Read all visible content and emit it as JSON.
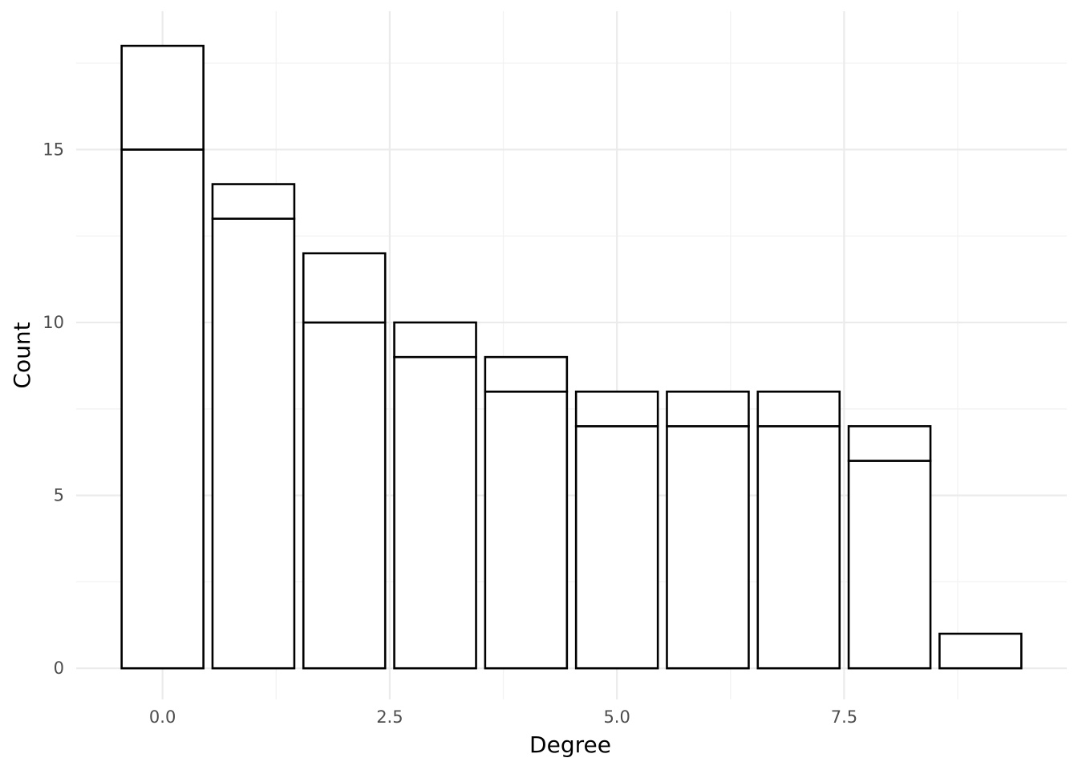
{
  "chart_data": {
    "type": "bar",
    "x": [
      0,
      1,
      2,
      3,
      4,
      5,
      6,
      7,
      8,
      9
    ],
    "series": [
      {
        "values": [
          15,
          13,
          10,
          9,
          8,
          7,
          7,
          7,
          6,
          1
        ]
      },
      {
        "values": [
          3,
          1,
          2,
          1,
          1,
          1,
          1,
          1,
          1,
          0
        ]
      }
    ],
    "stacked": true,
    "xlabel": "Degree",
    "ylabel": "Count",
    "xlim": [
      -0.95,
      9.95
    ],
    "ylim": [
      -0.9,
      19
    ],
    "xticks": [
      0,
      2.5,
      5,
      7.5
    ],
    "xtick_labels": [
      "0.0",
      "2.5",
      "5.0",
      "7.5"
    ],
    "yticks": [
      0,
      5,
      10,
      15
    ],
    "ytick_labels": [
      "0",
      "5",
      "10",
      "15"
    ],
    "grid": true,
    "legend": "none",
    "colors": {
      "bar_fill": "#ffffff",
      "bar_outline": "#000000",
      "grid": "#ebebeb",
      "tick_text": "#4d4d4d"
    }
  }
}
